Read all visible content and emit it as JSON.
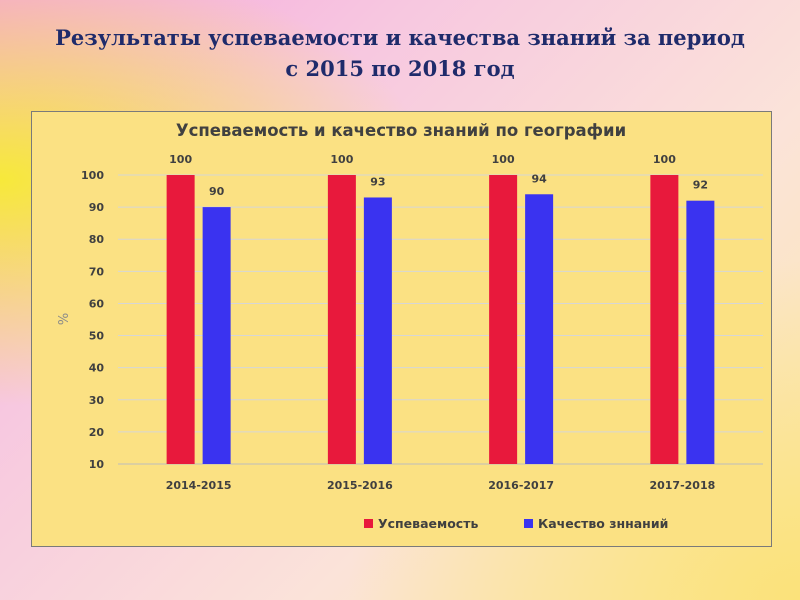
{
  "slide": {
    "title_line1": "Результаты успеваемости и качества знаний  за период",
    "title_line2": "с 2015 по 2018 год"
  },
  "colors": {
    "series1": "#e8193c",
    "series2": "#3a33f0",
    "title_text": "#1f2b6b",
    "chart_bg": "#fbe183"
  },
  "chart_data": {
    "type": "bar",
    "title": "Успеваемость и качество знаний по географии",
    "xlabel": "",
    "ylabel": "%",
    "ylim": [
      10,
      100
    ],
    "yticks": [
      10,
      20,
      30,
      40,
      50,
      60,
      70,
      80,
      90,
      100
    ],
    "grid": true,
    "legend_position": "bottom-right",
    "categories": [
      "2014-2015",
      "2015-2016",
      "2016-2017",
      "2017-2018"
    ],
    "series": [
      {
        "name": "Успеваемость",
        "values": [
          100,
          100,
          100,
          100
        ],
        "color": "#e8193c"
      },
      {
        "name": "Качество зннаний",
        "values": [
          90,
          93,
          94,
          92
        ],
        "color": "#3a33f0"
      }
    ]
  }
}
